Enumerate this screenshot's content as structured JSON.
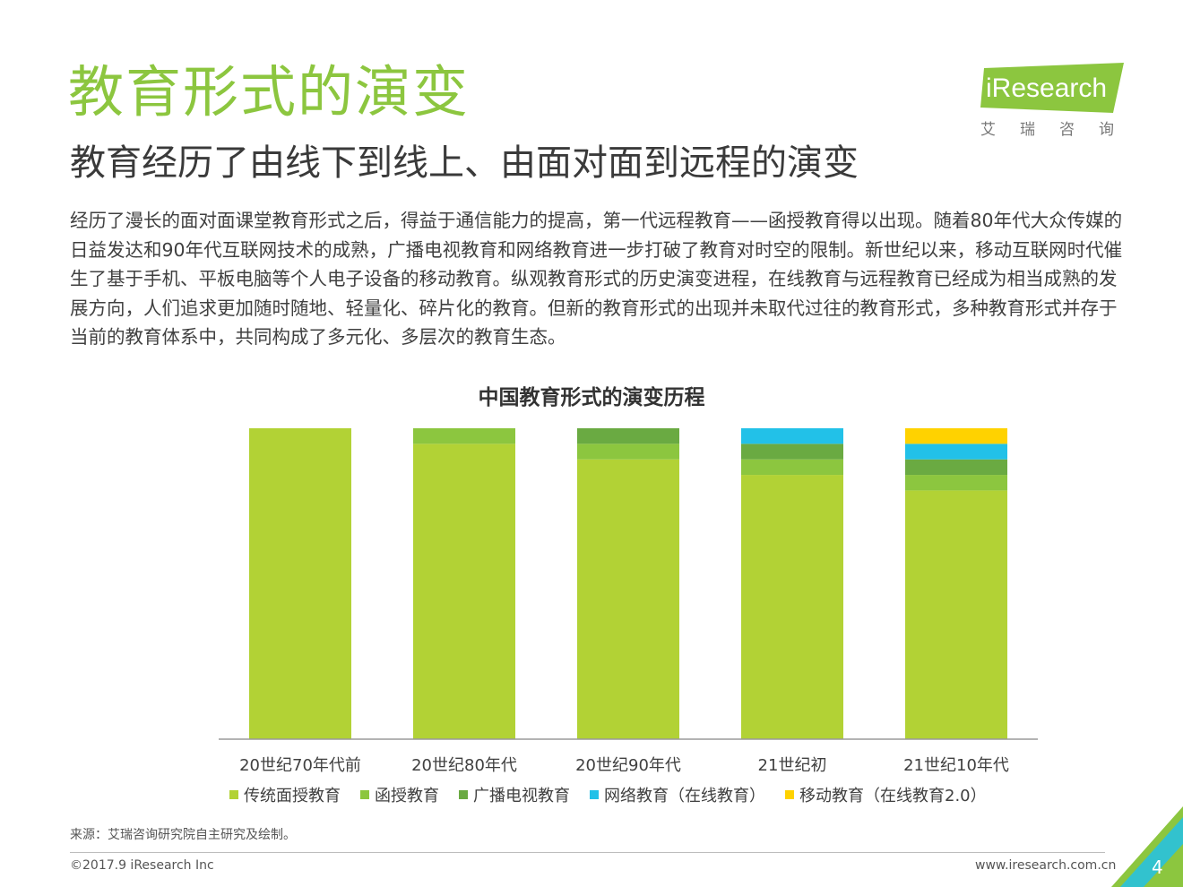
{
  "header": {
    "title": "教育形式的演变",
    "subtitle": "教育经历了由线下到线上、由面对面到远程的演变",
    "logo_text": "iResearch",
    "logo_cn": "艾瑞咨询"
  },
  "intro": "经历了漫长的面对面课堂教育形式之后，得益于通信能力的提高，第一代远程教育——函授教育得以出现。随着80年代大众传媒的日益发达和90年代互联网技术的成熟，广播电视教育和网络教育进一步打破了教育对时空的限制。新世纪以来，移动互联网时代催生了基于手机、平板电脑等个人电子设备的移动教育。纵观教育形式的历史演变进程，在线教育与远程教育已经成为相当成熟的发展方向，人们追求更加随时随地、轻量化、碎片化的教育。但新的教育形式的出现并未取代过往的教育形式，多种教育形式并存于当前的教育体系中，共同构成了多元化、多层次的教育生态。",
  "chart_data": {
    "type": "bar",
    "stacked": true,
    "title": "中国教育形式的演变历程",
    "categories": [
      "20世纪70年代前",
      "20世纪80年代",
      "20世纪90年代",
      "21世纪初",
      "21世纪10年代"
    ],
    "ylim": [
      0,
      100
    ],
    "series": [
      {
        "name": "传统面授教育",
        "color": "#b2d235",
        "values": [
          100,
          95,
          90,
          85,
          80
        ]
      },
      {
        "name": "函授教育",
        "color": "#8cc63f",
        "values": [
          0,
          5,
          5,
          5,
          5
        ]
      },
      {
        "name": "广播电视教育",
        "color": "#6aaa42",
        "values": [
          0,
          0,
          5,
          5,
          5
        ]
      },
      {
        "name": "网络教育（在线教育）",
        "color": "#22c1e8",
        "values": [
          0,
          0,
          0,
          5,
          5
        ]
      },
      {
        "name": "移动教育（在线教育2.0）",
        "color": "#ffd200",
        "values": [
          0,
          0,
          0,
          0,
          5
        ]
      }
    ]
  },
  "footer": {
    "source": "来源：艾瑞咨询研究院自主研究及绘制。",
    "copyright": "©2017.9 iResearch Inc",
    "website": "www.iresearch.com.cn",
    "page_number": "4"
  }
}
